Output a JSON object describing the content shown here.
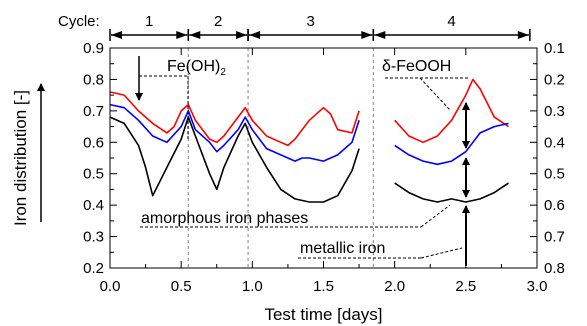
{
  "chart_data": {
    "type": "line",
    "xlabel": "Test time [days]",
    "ylabel": "Iron distribution [-]",
    "xlim": [
      0.0,
      3.0
    ],
    "ylim": [
      0.2,
      0.9
    ],
    "y2lim": [
      0.1,
      0.8
    ],
    "y2_reversed": true,
    "x_ticks": [
      "0.0",
      "0.5",
      "1.0",
      "1.5",
      "2.0",
      "2.5",
      "3.0"
    ],
    "y_ticks": [
      "0.2",
      "0.3",
      "0.4",
      "0.5",
      "0.6",
      "0.7",
      "0.8",
      "0.9"
    ],
    "y2_ticks": [
      "0.8",
      "0.7",
      "0.6",
      "0.5",
      "0.4",
      "0.3",
      "0.2",
      "0.1"
    ],
    "grid": false,
    "cycles": {
      "label": "Cycle:",
      "items": [
        {
          "name": "1",
          "start": 0.0,
          "end": 0.55
        },
        {
          "name": "2",
          "start": 0.55,
          "end": 0.97
        },
        {
          "name": "3",
          "start": 0.97,
          "end": 1.85
        },
        {
          "name": "4",
          "start": 1.85,
          "end": 2.95
        }
      ],
      "divider_color": "#808080"
    },
    "annotations": [
      {
        "id": "feoh2",
        "text": "Fe(OH)",
        "sub": "2"
      },
      {
        "id": "feooh",
        "text": "δ-FeOOH"
      },
      {
        "id": "amorphous",
        "text": "amorphous iron phases"
      },
      {
        "id": "metallic",
        "text": "metallic iron"
      }
    ],
    "series": [
      {
        "color": "#ff0000",
        "x": [
          0.0,
          0.1,
          0.2,
          0.3,
          0.4,
          0.45,
          0.5,
          0.55,
          0.6,
          0.7,
          0.75,
          0.8,
          0.9,
          0.95,
          1.0,
          1.1,
          1.2,
          1.25,
          1.3,
          1.4,
          1.5,
          1.55,
          1.6,
          1.7,
          1.75,
          2.0,
          2.1,
          2.2,
          2.3,
          2.4,
          2.5,
          2.55,
          2.6,
          2.7,
          2.8
        ],
        "y": [
          0.76,
          0.75,
          0.7,
          0.66,
          0.63,
          0.65,
          0.7,
          0.72,
          0.67,
          0.61,
          0.6,
          0.62,
          0.68,
          0.71,
          0.67,
          0.62,
          0.6,
          0.59,
          0.61,
          0.67,
          0.71,
          0.69,
          0.64,
          0.63,
          0.7,
          0.67,
          0.62,
          0.6,
          0.62,
          0.67,
          0.75,
          0.8,
          0.77,
          0.68,
          0.65
        ]
      },
      {
        "color": "#0000ff",
        "x": [
          0.0,
          0.1,
          0.2,
          0.3,
          0.4,
          0.5,
          0.55,
          0.6,
          0.7,
          0.75,
          0.8,
          0.9,
          0.95,
          1.0,
          1.1,
          1.2,
          1.3,
          1.35,
          1.4,
          1.5,
          1.6,
          1.7,
          1.75,
          2.0,
          2.1,
          2.2,
          2.3,
          2.4,
          2.5,
          2.6,
          2.7,
          2.8
        ],
        "y": [
          0.72,
          0.71,
          0.67,
          0.62,
          0.6,
          0.65,
          0.7,
          0.64,
          0.6,
          0.57,
          0.59,
          0.64,
          0.68,
          0.64,
          0.58,
          0.56,
          0.54,
          0.55,
          0.55,
          0.54,
          0.56,
          0.6,
          0.67,
          0.59,
          0.56,
          0.54,
          0.53,
          0.54,
          0.57,
          0.63,
          0.65,
          0.66
        ]
      },
      {
        "color": "#000000",
        "x": [
          0.0,
          0.1,
          0.2,
          0.25,
          0.3,
          0.4,
          0.5,
          0.55,
          0.6,
          0.7,
          0.75,
          0.8,
          0.9,
          0.95,
          1.0,
          1.1,
          1.2,
          1.3,
          1.4,
          1.5,
          1.6,
          1.7,
          1.75,
          2.0,
          2.1,
          2.2,
          2.3,
          2.4,
          2.5,
          2.6,
          2.7,
          2.8
        ],
        "y": [
          0.68,
          0.66,
          0.59,
          0.52,
          0.43,
          0.52,
          0.61,
          0.68,
          0.62,
          0.5,
          0.45,
          0.52,
          0.62,
          0.66,
          0.6,
          0.52,
          0.45,
          0.42,
          0.41,
          0.41,
          0.43,
          0.51,
          0.58,
          0.47,
          0.44,
          0.42,
          0.41,
          0.42,
          0.41,
          0.42,
          0.44,
          0.47
        ]
      }
    ]
  }
}
